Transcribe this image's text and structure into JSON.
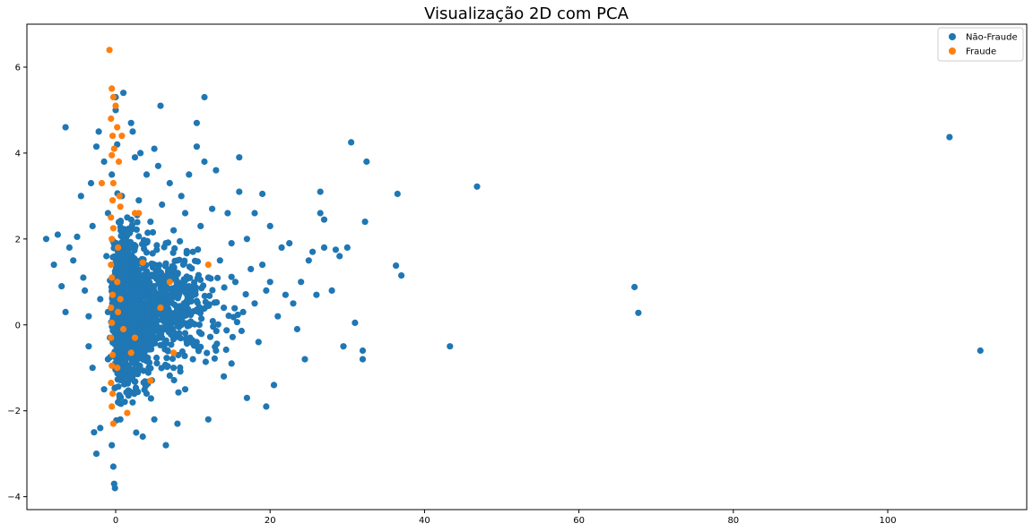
{
  "chart_data": {
    "type": "scatter",
    "title": "Visualização 2D com PCA",
    "xlabel": "",
    "ylabel": "",
    "xlim": [
      -11.5,
      118
    ],
    "ylim": [
      -4.3,
      7
    ],
    "xticks": [
      0,
      20,
      40,
      60,
      80,
      100
    ],
    "yticks": [
      -4,
      -2,
      0,
      2,
      4,
      6
    ],
    "xtick_labels": [
      "0",
      "20",
      "40",
      "60",
      "80",
      "100"
    ],
    "ytick_labels": [
      "−4",
      "−2",
      "0",
      "2",
      "4",
      "6"
    ],
    "grid": false,
    "legend_position": "top-right",
    "series": [
      {
        "name": "Não-Fraude",
        "color": "#1f77b4",
        "points": [
          [
            -9,
            2
          ],
          [
            -8,
            1.4
          ],
          [
            -7.5,
            2.1
          ],
          [
            -7,
            0.9
          ],
          [
            -6.5,
            4.6
          ],
          [
            -6,
            1.8
          ],
          [
            -6.5,
            0.3
          ],
          [
            -5.5,
            1.5
          ],
          [
            -5,
            2.05
          ],
          [
            -4.5,
            3.0
          ],
          [
            -4,
            0.8
          ],
          [
            -4.2,
            1.1
          ],
          [
            -3.5,
            -0.5
          ],
          [
            -3.5,
            0.2
          ],
          [
            -3.2,
            3.3
          ],
          [
            -3,
            2.3
          ],
          [
            -3,
            -1.0
          ],
          [
            -2.8,
            -2.5
          ],
          [
            -2.5,
            -3.0
          ],
          [
            -2.2,
            4.5
          ],
          [
            -2.5,
            4.15
          ],
          [
            -2,
            -2.4
          ],
          [
            -2,
            0.6
          ],
          [
            -1.5,
            3.8
          ],
          [
            -1.5,
            -1.5
          ],
          [
            -1.2,
            1.6
          ],
          [
            -1,
            0.3
          ],
          [
            -1,
            -0.8
          ],
          [
            -1,
            2.6
          ],
          [
            -0.5,
            3.5
          ],
          [
            -0.5,
            -2.8
          ],
          [
            -0.3,
            -3.3
          ],
          [
            -0.2,
            -3.7
          ],
          [
            -0.1,
            -3.8
          ],
          [
            0,
            5.3
          ],
          [
            0,
            5.0
          ],
          [
            0.2,
            4.2
          ],
          [
            0.3,
            -1.8
          ],
          [
            0.5,
            1.2
          ],
          [
            0.6,
            -2.2
          ],
          [
            0.8,
            3.0
          ],
          [
            1,
            5.4
          ],
          [
            1.2,
            0.5
          ],
          [
            1.5,
            2.5
          ],
          [
            1.5,
            -0.3
          ],
          [
            2,
            4.7
          ],
          [
            2,
            -1.2
          ],
          [
            2.2,
            4.5
          ],
          [
            2.5,
            1.8
          ],
          [
            2.5,
            3.9
          ],
          [
            3,
            -0.5
          ],
          [
            3,
            2.9
          ],
          [
            3.2,
            4.0
          ],
          [
            3.5,
            -2.6
          ],
          [
            3.5,
            1.0
          ],
          [
            4,
            3.5
          ],
          [
            4,
            -1.6
          ],
          [
            4.2,
            0.2
          ],
          [
            4.5,
            2.4
          ],
          [
            5,
            4.1
          ],
          [
            5,
            -2.2
          ],
          [
            5.5,
            1.3
          ],
          [
            5.5,
            3.7
          ],
          [
            5.8,
            5.1
          ],
          [
            6,
            -0.3
          ],
          [
            6,
            2.8
          ],
          [
            6.5,
            -2.8
          ],
          [
            6.5,
            1.9
          ],
          [
            7,
            0.6
          ],
          [
            7,
            3.3
          ],
          [
            7.5,
            -1.0
          ],
          [
            7.5,
            2.2
          ],
          [
            8,
            -2.3
          ],
          [
            8,
            1.5
          ],
          [
            8.5,
            3.0
          ],
          [
            8.5,
            0.0
          ],
          [
            9,
            -1.5
          ],
          [
            9,
            2.6
          ],
          [
            9.5,
            0.9
          ],
          [
            9.5,
            3.5
          ],
          [
            10,
            -0.8
          ],
          [
            10,
            1.7
          ],
          [
            10.5,
            4.15
          ],
          [
            10.5,
            4.7
          ],
          [
            11,
            2.3
          ],
          [
            11,
            -0.2
          ],
          [
            11.5,
            3.8
          ],
          [
            11.5,
            5.3
          ],
          [
            12,
            1.1
          ],
          [
            12,
            -2.2
          ],
          [
            12.5,
            2.7
          ],
          [
            13,
            -0.6
          ],
          [
            13,
            3.6
          ],
          [
            13.5,
            1.5
          ],
          [
            14,
            -1.2
          ],
          [
            14,
            0.4
          ],
          [
            14.5,
            2.6
          ],
          [
            15,
            1.9
          ],
          [
            15,
            -0.9
          ],
          [
            15.5,
            1.0
          ],
          [
            16,
            3.9
          ],
          [
            16,
            3.1
          ],
          [
            16.5,
            0.3
          ],
          [
            17,
            2.0
          ],
          [
            17,
            -1.7
          ],
          [
            17.5,
            1.3
          ],
          [
            18,
            0.5
          ],
          [
            18,
            2.6
          ],
          [
            18.5,
            -0.4
          ],
          [
            19,
            1.4
          ],
          [
            19,
            3.05
          ],
          [
            19.5,
            0.8
          ],
          [
            19.5,
            -1.9
          ],
          [
            20,
            2.3
          ],
          [
            20,
            1.0
          ],
          [
            20.5,
            -1.4
          ],
          [
            21,
            0.2
          ],
          [
            21.5,
            1.8
          ],
          [
            22,
            0.7
          ],
          [
            22.5,
            1.9
          ],
          [
            23,
            0.5
          ],
          [
            23.5,
            -0.1
          ],
          [
            24,
            1.0
          ],
          [
            24.5,
            -0.8
          ],
          [
            25,
            1.5
          ],
          [
            25.5,
            1.7
          ],
          [
            26,
            0.7
          ],
          [
            26.5,
            3.1
          ],
          [
            26.5,
            2.6
          ],
          [
            27,
            2.45
          ],
          [
            27,
            1.8
          ],
          [
            28,
            0.8
          ],
          [
            28.5,
            1.75
          ],
          [
            29,
            1.6
          ],
          [
            29.5,
            -0.5
          ],
          [
            30,
            1.8
          ],
          [
            30.5,
            4.25
          ],
          [
            31,
            0.05
          ],
          [
            32,
            -0.6
          ],
          [
            32,
            -0.8
          ],
          [
            32.3,
            2.4
          ],
          [
            32.5,
            3.8
          ],
          [
            36.5,
            3.05
          ],
          [
            36.3,
            1.38
          ],
          [
            37,
            1.15
          ],
          [
            43.3,
            -0.5
          ],
          [
            46.8,
            3.22
          ],
          [
            67.2,
            0.88
          ],
          [
            67.7,
            0.28
          ],
          [
            108,
            4.37
          ],
          [
            112,
            -0.6
          ]
        ]
      },
      {
        "name": "Fraude",
        "color": "#ff7f0e",
        "points": [
          [
            -0.8,
            6.4
          ],
          [
            -0.5,
            5.5
          ],
          [
            -0.3,
            5.3
          ],
          [
            0,
            5.1
          ],
          [
            -0.6,
            4.8
          ],
          [
            0.2,
            4.6
          ],
          [
            -0.4,
            4.4
          ],
          [
            0.8,
            4.4
          ],
          [
            -0.2,
            4.1
          ],
          [
            -0.5,
            3.95
          ],
          [
            0.4,
            3.8
          ],
          [
            -1.8,
            3.3
          ],
          [
            -0.3,
            3.3
          ],
          [
            0.5,
            3.0
          ],
          [
            -0.4,
            2.9
          ],
          [
            0.6,
            2.75
          ],
          [
            -0.6,
            2.5
          ],
          [
            2.5,
            2.6
          ],
          [
            3.0,
            2.6
          ],
          [
            -0.3,
            2.25
          ],
          [
            -0.5,
            2.0
          ],
          [
            0.3,
            1.8
          ],
          [
            -0.6,
            1.4
          ],
          [
            3.5,
            1.45
          ],
          [
            12.0,
            1.4
          ],
          [
            -0.5,
            1.1
          ],
          [
            0.2,
            1.0
          ],
          [
            7.0,
            1.0
          ],
          [
            -0.4,
            0.7
          ],
          [
            0.6,
            0.6
          ],
          [
            -0.6,
            0.4
          ],
          [
            5.8,
            0.4
          ],
          [
            0.3,
            0.3
          ],
          [
            -0.5,
            0.05
          ],
          [
            1.0,
            -0.1
          ],
          [
            -0.6,
            -0.3
          ],
          [
            2.5,
            -0.3
          ],
          [
            -0.4,
            -0.7
          ],
          [
            2.0,
            -0.65
          ],
          [
            7.5,
            -0.65
          ],
          [
            -0.5,
            -0.95
          ],
          [
            0.2,
            -1.0
          ],
          [
            4.5,
            -1.3
          ],
          [
            -0.6,
            -1.35
          ],
          [
            -0.4,
            -1.6
          ],
          [
            -0.5,
            -1.9
          ],
          [
            1.5,
            -2.05
          ],
          [
            -0.3,
            -2.3
          ]
        ]
      }
    ]
  },
  "legend": {
    "items": [
      {
        "label": "Não-Fraude",
        "color": "#1f77b4"
      },
      {
        "label": "Fraude",
        "color": "#ff7f0e"
      }
    ]
  }
}
